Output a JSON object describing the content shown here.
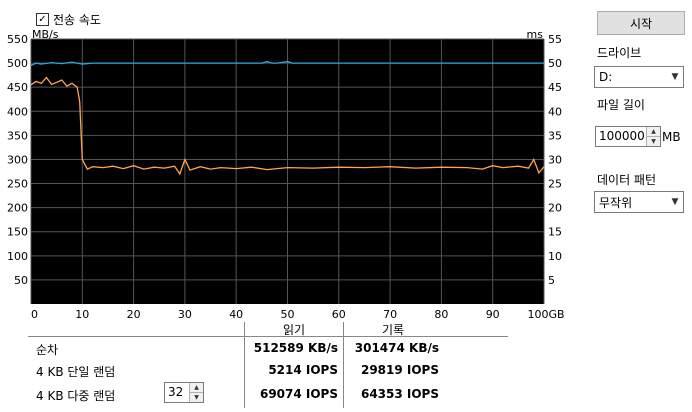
{
  "header": {
    "checkbox_label": "전송 속도",
    "checked": true
  },
  "chart_data": {
    "type": "line",
    "left_axis_unit": "MB/s",
    "right_axis_unit": "ms",
    "x_unit": "GB",
    "ylim": [
      0,
      550
    ],
    "y2lim": [
      0,
      55
    ],
    "xlim": [
      0,
      100
    ],
    "y_ticks": [
      550,
      500,
      450,
      400,
      350,
      300,
      250,
      200,
      150,
      100,
      50
    ],
    "y2_ticks": [
      55,
      50,
      45,
      40,
      35,
      30,
      25,
      20,
      15,
      10,
      5
    ],
    "x_ticks": [
      "0",
      "10",
      "20",
      "30",
      "40",
      "50",
      "60",
      "70",
      "80",
      "90",
      "100GB"
    ],
    "grid": true,
    "background": "#000000",
    "grid_color": "#555555",
    "series": [
      {
        "color": "#ffa54f",
        "x": [
          0,
          1,
          2,
          3,
          4,
          5,
          6,
          7,
          8,
          9,
          9.5,
          10,
          11,
          12,
          14,
          16,
          18,
          20,
          22,
          24,
          26,
          28,
          29,
          30,
          31,
          33,
          35,
          37,
          40,
          43,
          46,
          50,
          55,
          60,
          65,
          70,
          75,
          80,
          85,
          88,
          90,
          92,
          95,
          97,
          98,
          99,
          100
        ],
        "y": [
          455,
          462,
          458,
          470,
          456,
          460,
          465,
          452,
          458,
          450,
          420,
          300,
          280,
          285,
          283,
          286,
          281,
          287,
          280,
          284,
          282,
          286,
          270,
          300,
          278,
          285,
          280,
          283,
          281,
          284,
          279,
          283,
          282,
          284,
          283,
          285,
          282,
          284,
          283,
          280,
          287,
          283,
          286,
          282,
          300,
          272,
          285
        ]
      },
      {
        "color": "#29a9e0",
        "x": [
          0,
          1,
          2,
          4,
          6,
          8,
          10,
          12,
          20,
          30,
          40,
          45,
          46,
          47,
          48,
          50,
          51,
          60,
          70,
          80,
          90,
          100
        ],
        "y": [
          495,
          500,
          498,
          501,
          499,
          502,
          498,
          500,
          500,
          500,
          500,
          500,
          503,
          500,
          500,
          503,
          500,
          500,
          500,
          500,
          500,
          500
        ]
      }
    ]
  },
  "results": {
    "read_header": "읽기",
    "write_header": "기록",
    "rows": [
      {
        "label": "순차",
        "read": "512589 KB/s",
        "write": "301474 KB/s"
      },
      {
        "label": "4 KB 단일 랜덤",
        "read": "5214 IOPS",
        "write": "29819 IOPS"
      },
      {
        "label": "4 KB 다중 랜덤",
        "read": "69074 IOPS",
        "write": "64353 IOPS"
      }
    ],
    "queue_depth": "32"
  },
  "panel": {
    "start_label": "시작",
    "drive_label": "드라이브",
    "drive_value": "D:",
    "file_length_label": "파일 길이",
    "file_length_value": "100000",
    "file_length_unit": "MB",
    "pattern_label": "데이터 패턴",
    "pattern_value": "무작위"
  }
}
